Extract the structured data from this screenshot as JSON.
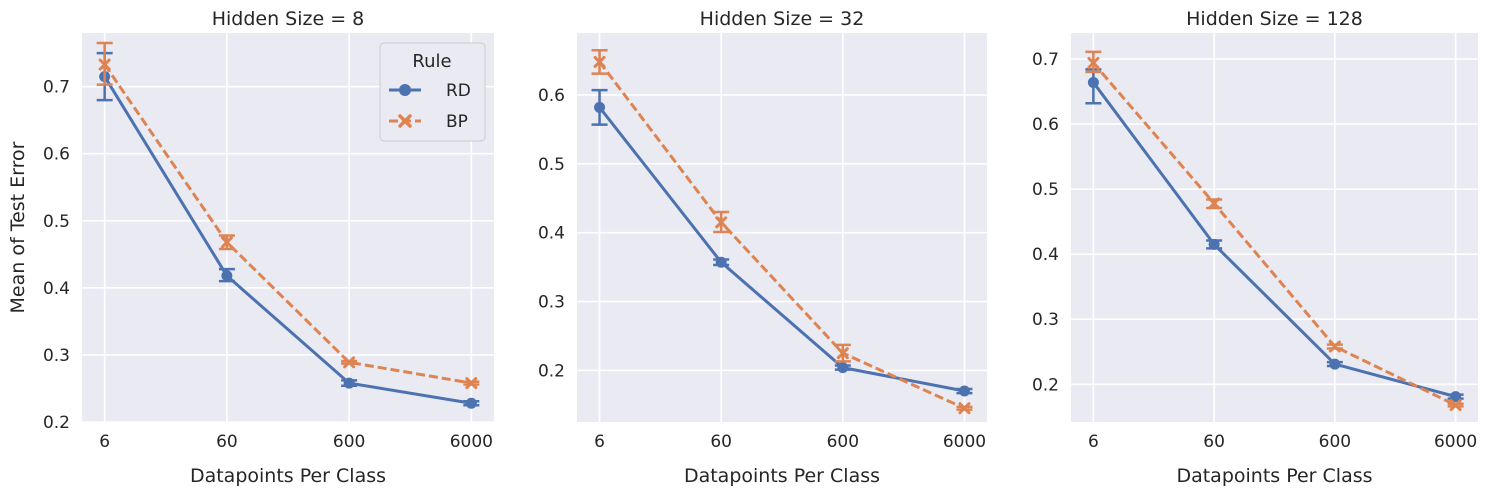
{
  "colors": {
    "RD": "#4c72b0",
    "BP": "#dd8452",
    "panel_bg": "#eaeaf2",
    "grid": "#ffffff"
  },
  "legend": {
    "title": "Rule",
    "entries": [
      "RD",
      "BP"
    ]
  },
  "chart_data": [
    {
      "type": "line",
      "title": "Hidden Size = 8",
      "xlabel": "Datapoints Per Class",
      "ylabel": "Mean of Test Error",
      "x_scale": "log",
      "categories": [
        "6",
        "60",
        "600",
        "6000"
      ],
      "ylim": [
        0.2,
        0.78
      ],
      "yticks": [
        "0.2",
        "0.3",
        "0.4",
        "0.5",
        "0.6",
        "0.7"
      ],
      "series": [
        {
          "name": "RD",
          "values": [
            0.715,
            0.418,
            0.258,
            0.228
          ],
          "err_low": [
            0.68,
            0.41,
            0.254,
            0.225
          ],
          "err_high": [
            0.75,
            0.428,
            0.262,
            0.231
          ]
        },
        {
          "name": "BP",
          "values": [
            0.733,
            0.468,
            0.289,
            0.258
          ],
          "err_low": [
            0.703,
            0.458,
            0.287,
            0.256
          ],
          "err_high": [
            0.765,
            0.478,
            0.291,
            0.26
          ]
        }
      ]
    },
    {
      "type": "line",
      "title": "Hidden Size = 32",
      "xlabel": "Datapoints Per Class",
      "ylabel": "",
      "x_scale": "log",
      "categories": [
        "6",
        "60",
        "600",
        "6000"
      ],
      "ylim": [
        0.125,
        0.69
      ],
      "yticks": [
        "0.2",
        "0.3",
        "0.4",
        "0.5",
        "0.6"
      ],
      "series": [
        {
          "name": "RD",
          "values": [
            0.582,
            0.357,
            0.204,
            0.17
          ],
          "err_low": [
            0.557,
            0.353,
            0.201,
            0.167
          ],
          "err_high": [
            0.607,
            0.361,
            0.207,
            0.173
          ]
        },
        {
          "name": "BP",
          "values": [
            0.648,
            0.415,
            0.225,
            0.145
          ],
          "err_low": [
            0.631,
            0.401,
            0.213,
            0.143
          ],
          "err_high": [
            0.665,
            0.43,
            0.237,
            0.147
          ]
        }
      ]
    },
    {
      "type": "line",
      "title": "Hidden Size = 128",
      "xlabel": "Datapoints Per Class",
      "ylabel": "",
      "x_scale": "log",
      "categories": [
        "6",
        "60",
        "600",
        "6000"
      ],
      "ylim": [
        0.142,
        0.74
      ],
      "yticks": [
        "0.2",
        "0.3",
        "0.4",
        "0.5",
        "0.6",
        "0.7"
      ],
      "series": [
        {
          "name": "RD",
          "values": [
            0.664,
            0.415,
            0.231,
            0.181
          ],
          "err_low": [
            0.632,
            0.409,
            0.228,
            0.178
          ],
          "err_high": [
            0.684,
            0.421,
            0.234,
            0.184
          ]
        },
        {
          "name": "BP",
          "values": [
            0.694,
            0.478,
            0.258,
            0.168
          ],
          "err_low": [
            0.68,
            0.471,
            0.255,
            0.166
          ],
          "err_high": [
            0.711,
            0.484,
            0.261,
            0.17
          ]
        }
      ]
    }
  ]
}
